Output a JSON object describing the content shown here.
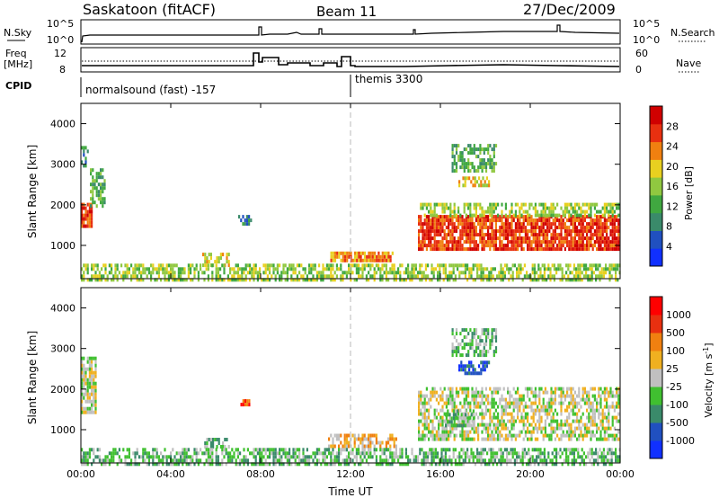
{
  "header": {
    "station": "Saskatoon (fitACF)",
    "beam": "Beam 11",
    "date": "27/Dec/2009"
  },
  "top_panel": {
    "nsky_label": "N.Sky",
    "nsearch_label": "N.Search",
    "left_ticks": [
      "10^5",
      "10^0"
    ],
    "right_ticks": [
      "10^5",
      "10^0"
    ]
  },
  "freq_panel": {
    "freq_label_1": "Freq",
    "freq_label_2": "[MHz]",
    "nave_label": "Nave",
    "left_ticks": [
      "12",
      "8"
    ],
    "right_ticks": [
      "60",
      "0"
    ]
  },
  "cpid": {
    "label": "CPID",
    "mode1": "normalsound (fast) -157",
    "mode2": "themis 3300"
  },
  "power_colorbar": {
    "label": "Power [dB]",
    "ticks": [
      "28",
      "24",
      "20",
      "16",
      "12",
      "8",
      "4"
    ]
  },
  "velocity_colorbar": {
    "label": "Velocity [m s",
    "label_sup": "-1",
    "label_end": "]",
    "ticks": [
      "1000",
      "500",
      "100",
      "25",
      "-25",
      "-100",
      "-500",
      "-1000"
    ]
  },
  "chart_data": [
    {
      "type": "heatmap",
      "title": "Power",
      "xlabel": "Time UT",
      "ylabel": "Slant Range [km]",
      "xlim": [
        0,
        24
      ],
      "ylim": [
        180,
        4500
      ],
      "yticks": [
        "1000",
        "2000",
        "3000",
        "4000"
      ],
      "xticks": [
        "00:00",
        "04:00",
        "08:00",
        "12:00",
        "16:00",
        "20:00",
        "00:00"
      ],
      "colors": [
        "#1030ff",
        "#2050c0",
        "#3a8a6a",
        "#40a840",
        "#90c840",
        "#e8d020",
        "#f08010",
        "#e83010",
        "#d00000"
      ],
      "regions": [
        {
          "t0": 0.0,
          "t1": 0.5,
          "r0": 1450,
          "r1": 2050,
          "level": 7
        },
        {
          "t0": 0.4,
          "t1": 1.1,
          "r0": 2000,
          "r1": 2900,
          "level": 3
        },
        {
          "t0": 0.0,
          "t1": 0.3,
          "r0": 3000,
          "r1": 3450,
          "level": 2
        },
        {
          "t0": 5.4,
          "t1": 6.6,
          "r0": 550,
          "r1": 820,
          "level": 5
        },
        {
          "t0": 7.0,
          "t1": 7.6,
          "r0": 1550,
          "r1": 1750,
          "level": 2
        },
        {
          "t0": 11.1,
          "t1": 13.9,
          "r0": 600,
          "r1": 850,
          "level": 6
        },
        {
          "t0": 15.0,
          "t1": 23.9,
          "r0": 900,
          "r1": 1750,
          "level": 7
        },
        {
          "t0": 15.0,
          "t1": 23.9,
          "r0": 1750,
          "r1": 2050,
          "level": 4
        },
        {
          "t0": 16.8,
          "t1": 18.2,
          "r0": 2500,
          "r1": 2700,
          "level": 5
        },
        {
          "t0": 16.5,
          "t1": 18.5,
          "r0": 2800,
          "r1": 3500,
          "level": 3
        },
        {
          "t0": 0.0,
          "t1": 24.0,
          "r0": 180,
          "r1": 550,
          "level": 4
        }
      ]
    },
    {
      "type": "heatmap",
      "title": "Velocity",
      "xlabel": "Time UT",
      "ylabel": "Slant Range [km]",
      "xlim": [
        0,
        24
      ],
      "ylim": [
        180,
        4500
      ],
      "yticks": [
        "1000",
        "2000",
        "3000",
        "4000"
      ],
      "xticks": [
        "00:00",
        "04:00",
        "08:00",
        "12:00",
        "16:00",
        "20:00",
        "00:00"
      ],
      "colors": [
        "#1030ff",
        "#2050c0",
        "#3a8a6a",
        "#40c030",
        "#c0c0c0",
        "#f0b020",
        "#f08010",
        "#e83010",
        "#ff0000"
      ],
      "regions": [
        {
          "t0": 0.0,
          "t1": 0.7,
          "r0": 1450,
          "r1": 2800,
          "level": 4
        },
        {
          "t0": 5.4,
          "t1": 6.6,
          "r0": 600,
          "r1": 800,
          "level": 3
        },
        {
          "t0": 7.1,
          "t1": 7.5,
          "r0": 1600,
          "r1": 1750,
          "level": 7
        },
        {
          "t0": 11.0,
          "t1": 14.0,
          "r0": 600,
          "r1": 900,
          "level": 5
        },
        {
          "t0": 15.0,
          "t1": 23.9,
          "r0": 800,
          "r1": 2050,
          "level": 4
        },
        {
          "t0": 16.2,
          "t1": 17.5,
          "r0": 1100,
          "r1": 1500,
          "level": 3
        },
        {
          "t0": 16.8,
          "t1": 18.2,
          "r0": 2400,
          "r1": 2700,
          "level": 1
        },
        {
          "t0": 16.5,
          "t1": 18.5,
          "r0": 2800,
          "r1": 3500,
          "level": 3
        },
        {
          "t0": 0.0,
          "t1": 24.0,
          "r0": 180,
          "r1": 550,
          "level": 3
        }
      ]
    }
  ]
}
